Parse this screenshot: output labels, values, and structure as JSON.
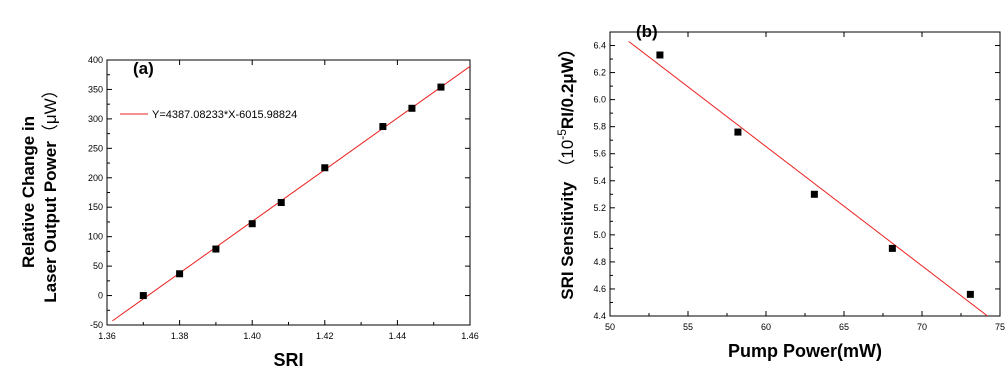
{
  "chart_data": [
    {
      "type": "scatter",
      "panel_label": "(a)",
      "xlabel": "SRI",
      "ylabel_lines": [
        "Relative Change in",
        "Laser Output Power"
      ],
      "ylabel_unit": "（μW）",
      "xlim": [
        1.36,
        1.46
      ],
      "ylim": [
        -50,
        400
      ],
      "xticks": [
        "1.36",
        "1.38",
        "1.40",
        "1.42",
        "1.44",
        "1.46"
      ],
      "yticks": [
        "-50",
        "0",
        "50",
        "100",
        "150",
        "200",
        "250",
        "300",
        "350",
        "400"
      ],
      "marker_color": "#000000",
      "fit_color": "#e8201f",
      "grid": false,
      "legend_position": "top-left",
      "series": [
        {
          "x": [
            1.37,
            1.38,
            1.39,
            1.4,
            1.408,
            1.42,
            1.436,
            1.444,
            1.452
          ],
          "y": [
            0,
            37,
            79,
            122,
            158,
            217,
            287,
            318,
            354
          ]
        }
      ],
      "fit": {
        "label": "Y=4387.08233*X-6015.98824",
        "slope": 4387.08233,
        "intercept": -6015.98824,
        "x_range": [
          1.3615,
          1.4615
        ]
      }
    },
    {
      "type": "scatter",
      "panel_label": "(b)",
      "xlabel": "Pump Power(mW)",
      "ylabel_main": "SRI Sensitivity",
      "ylabel_paren_open": "（10",
      "ylabel_sup": "-5",
      "ylabel_paren_rest": "RI/0.2μW）",
      "xlim": [
        50,
        75
      ],
      "ylim": [
        4.4,
        6.5
      ],
      "xticks": [
        "50",
        "55",
        "60",
        "65",
        "70",
        "75"
      ],
      "yticks": [
        "4.4",
        "4.6",
        "4.8",
        "5.0",
        "5.2",
        "5.4",
        "5.6",
        "5.8",
        "6.0",
        "6.2",
        "6.4"
      ],
      "marker_color": "#000000",
      "fit_color": "#e8201f",
      "grid": false,
      "series": [
        {
          "x": [
            53.2,
            58.2,
            63.1,
            68.1,
            73.1
          ],
          "y": [
            6.33,
            5.76,
            5.3,
            4.9,
            4.56
          ]
        }
      ],
      "fit": {
        "points": [
          [
            51.2,
            6.43
          ],
          [
            74.2,
            4.4
          ]
        ]
      }
    }
  ]
}
